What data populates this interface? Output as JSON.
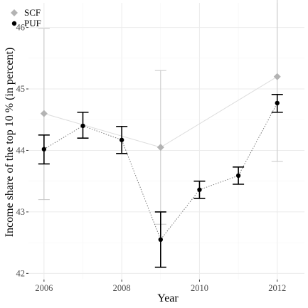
{
  "chart_data": {
    "type": "scatter",
    "xlabel": "Year",
    "ylabel": "Income share of the top  10 % (in percent)",
    "xlim": [
      2005.6,
      2012.7
    ],
    "ylim": [
      41.9,
      46.4
    ],
    "x_ticks": [
      2006,
      2008,
      2010,
      2012
    ],
    "y_ticks": [
      42,
      43,
      44,
      45,
      46
    ],
    "grid": true,
    "legend_position": "top-left",
    "series": [
      {
        "name": "SCF",
        "marker": "diamond",
        "color": "#b3b3b3",
        "line_style": "solid",
        "x": [
          2006,
          2009,
          2012
        ],
        "y": [
          44.6,
          44.05,
          45.2
        ],
        "y_low": [
          43.2,
          42.8,
          43.82
        ],
        "y_high": [
          45.98,
          45.3,
          46.58
        ]
      },
      {
        "name": "PUF",
        "marker": "circle",
        "color": "#000000",
        "line_style": "dotted",
        "x": [
          2006,
          2007,
          2008,
          2009,
          2010,
          2011,
          2012
        ],
        "y": [
          44.02,
          44.4,
          44.17,
          42.55,
          43.36,
          43.59,
          44.77
        ],
        "y_low": [
          43.78,
          44.2,
          43.95,
          42.1,
          43.22,
          43.45,
          44.62
        ],
        "y_high": [
          44.25,
          44.62,
          44.39,
          43.0,
          43.5,
          43.73,
          44.91
        ]
      }
    ]
  }
}
